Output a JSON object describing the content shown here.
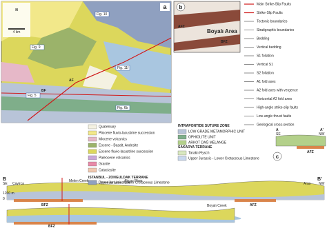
{
  "map": {
    "panel": "a",
    "north": "N",
    "scale": "4 km",
    "figs": [
      "Fig. 10",
      "Fig. 9",
      "Fig. 11f",
      "Fig. 5",
      "Fig. 6b"
    ],
    "faults": [
      "AF",
      "BF"
    ]
  },
  "legend": {
    "units": [
      {
        "label": "Quaternary",
        "color": "#f4f1e2"
      },
      {
        "label": "Pliocene fluvio-lacustrine succession",
        "color": "#f2e88a"
      },
      {
        "label": "Miocene volcanics",
        "color": "#e6b8c8"
      },
      {
        "label": "Eocene - Basalt, Andesite",
        "color": "#9bb36a"
      },
      {
        "label": "Eocene fluvio-lacustrine succession",
        "color": "#dcd75c"
      },
      {
        "label": "Paleocene volcanics",
        "color": "#c9a6d8"
      },
      {
        "label": "Granite",
        "color": "#e88aa8"
      },
      {
        "label": "Cataclasite",
        "color": "#f0c8b0"
      }
    ],
    "istanbul": {
      "heading": "ISTANBUL - ZONGULDAK TERRANE",
      "units": [
        {
          "label": "Upper Jurassic - Lower Cretaceous Limestone",
          "color": "#a9c6e0"
        },
        {
          "label": "Devonian Limestone",
          "color": "#8fa0c0"
        }
      ]
    },
    "intrapontide": {
      "heading": "INTRAPONTIDE SUTURE ZONE",
      "units": [
        {
          "label": "LOW GRADE METAMORPHIC UNIT",
          "color": "#b8c4d8"
        },
        {
          "label": "OPHIOLITE UNIT",
          "color": "#7fae8a"
        },
        {
          "label": "ARKOT DAĞ MÉLANGE",
          "color": "#b3d08a"
        }
      ]
    },
    "sakarya": {
      "heading": "SAKARYA TERRANE",
      "units": [
        {
          "label": "Taraklı Flysch",
          "color": "#d9e8c0"
        },
        {
          "label": "Upper Jurassic - Lower Cretaceous Limestone",
          "color": "#c8d8ee"
        }
      ]
    }
  },
  "symbols": [
    "Main Strike-Slip Faults",
    "Strike-Slip Faults",
    "Tectonic boundaries",
    "Stratigraphic boundaries",
    "Bedding",
    "Vertical bedding",
    "S1 foliation",
    "Vertical S1",
    "S2 foliation",
    "A1 fold axes",
    "A2 fold axes with vergence",
    "Horizontal A2 fold axes",
    "High-angle strike-slip faults",
    "Low-angle thrust faults",
    "Geological cross-section"
  ],
  "panel_b": {
    "panel": "b",
    "area": "Boyalı Area",
    "zones": [
      "AFZ",
      "BFZ"
    ]
  },
  "section_a": {
    "panel": "c",
    "start": "A",
    "end": "A'",
    "dirs": [
      "SE",
      "NW"
    ],
    "zone": "AFZ"
  },
  "section_b": {
    "start": "B",
    "end": "B'",
    "dirs": [
      "SE",
      "NW"
    ],
    "places": [
      "Çayirca",
      "Melen Creek",
      "Akçay River",
      "Aras",
      "Boyalı Creek"
    ],
    "elev": "1200 m",
    "base": "0",
    "zones": [
      "BFZ",
      "AFZ"
    ]
  }
}
